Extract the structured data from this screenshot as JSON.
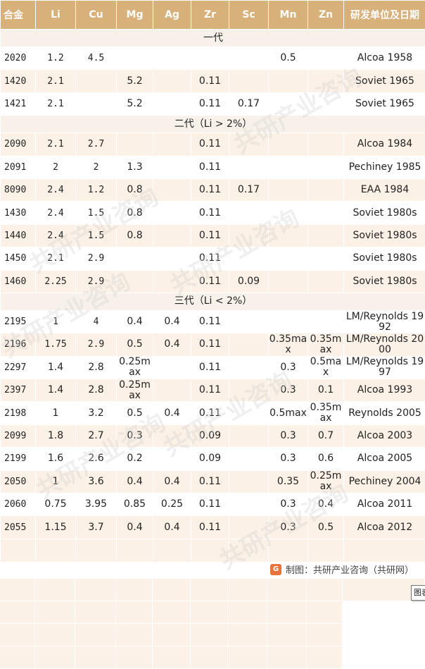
{
  "headers": [
    "合金",
    "Li",
    "Cu",
    "Mg",
    "Ag",
    "Zr",
    "Sc",
    "Mn",
    "Zn",
    "研发单位及日期"
  ],
  "sections": [
    {
      "label": "一代",
      "rows": [
        [
          "2020",
          "1.2",
          "4.5",
          "",
          "",
          "",
          "",
          "0.5",
          "",
          "Alcoa 1958"
        ],
        [
          "1420",
          "2.1",
          "",
          "5.2",
          "",
          "0.11",
          "",
          "",
          "",
          "Soviet 1965"
        ],
        [
          "1421",
          "2.1",
          "",
          "5.2",
          "",
          "0.11",
          "0.17",
          "",
          "",
          "Soviet 1965"
        ]
      ]
    },
    {
      "label": "二代（Li > 2%）",
      "rows": [
        [
          "2090",
          "2.1",
          "2.7",
          "",
          "",
          "0.11",
          "",
          "",
          "",
          "Alcoa 1984"
        ],
        [
          "2091",
          "2",
          "2",
          "1.3",
          "",
          "0.11",
          "",
          "",
          "",
          "Pechiney 1985"
        ],
        [
          "8090",
          "2.4",
          "1.2",
          "0.8",
          "",
          "0.11",
          "0.17",
          "",
          "",
          "EAA 1984"
        ],
        [
          "1430",
          "2.4",
          "1.5",
          "0.8",
          "",
          "0.11",
          "",
          "",
          "",
          "Soviet 1980s"
        ],
        [
          "1440",
          "2.4",
          "1.5",
          "0.8",
          "",
          "0.11",
          "",
          "",
          "",
          "Soviet 1980s"
        ],
        [
          "1450",
          "2.1",
          "2.9",
          "",
          "",
          "0.11",
          "",
          "",
          "",
          "Soviet 1980s"
        ],
        [
          "1460",
          "2.25",
          "2.9",
          "",
          "",
          "0.11",
          "0.09",
          "",
          "",
          "Soviet 1980s"
        ]
      ]
    },
    {
      "label": "三代（Li < 2%）",
      "rows": [
        [
          "2195",
          "1",
          "4",
          "0.4",
          "0.4",
          "0.11",
          "",
          "",
          "",
          "LM/Reynolds 1992"
        ],
        [
          "2196",
          "1.75",
          "2.9",
          "0.5",
          "0.4",
          "0.11",
          "",
          "0.35max",
          "0.35max",
          "LM/Reynolds 2000"
        ],
        [
          "2297",
          "1.4",
          "2.8",
          "0.25max",
          "",
          "0.11",
          "",
          "0.3",
          "0.5max",
          "LM/Reynolds 1997"
        ],
        [
          "2397",
          "1.4",
          "2.8",
          "0.25max",
          "",
          "0.11",
          "",
          "0.3",
          "0.1",
          "Alcoa 1993"
        ],
        [
          "2198",
          "1",
          "3.2",
          "0.5",
          "0.4",
          "0.11",
          "",
          "0.5max",
          "0.35max",
          "Reynolds 2005"
        ],
        [
          "2099",
          "1.8",
          "2.7",
          "0.3",
          "",
          "0.09",
          "",
          "0.3",
          "0.7",
          "Alcoa 2003"
        ],
        [
          "2199",
          "1.6",
          "2.6",
          "0.2",
          "",
          "0.09",
          "",
          "0.3",
          "0.6",
          "Alcoa 2005"
        ],
        [
          "2050",
          "1",
          "3.6",
          "0.4",
          "0.4",
          "0.11",
          "",
          "0.35",
          "0.25max",
          "Pechiney 2004"
        ],
        [
          "2060",
          "0.75",
          "3.95",
          "0.85",
          "0.25",
          "0.11",
          "",
          "0.3",
          "0.4",
          "Alcoa 2011"
        ],
        [
          "2055",
          "1.15",
          "3.7",
          "0.4",
          "0.4",
          "0.11",
          "",
          "0.3",
          "0.5",
          "Alcoa 2012"
        ]
      ]
    }
  ],
  "footer": {
    "logo": "G",
    "credit": "制图：共研产业咨询（共研网）"
  },
  "tooltip": "图表",
  "watermark": "共研产业咨询",
  "colors": {
    "header_bg": "#d8b07a",
    "row_alt": "#fbf1e6",
    "logo": "#e8743b"
  }
}
